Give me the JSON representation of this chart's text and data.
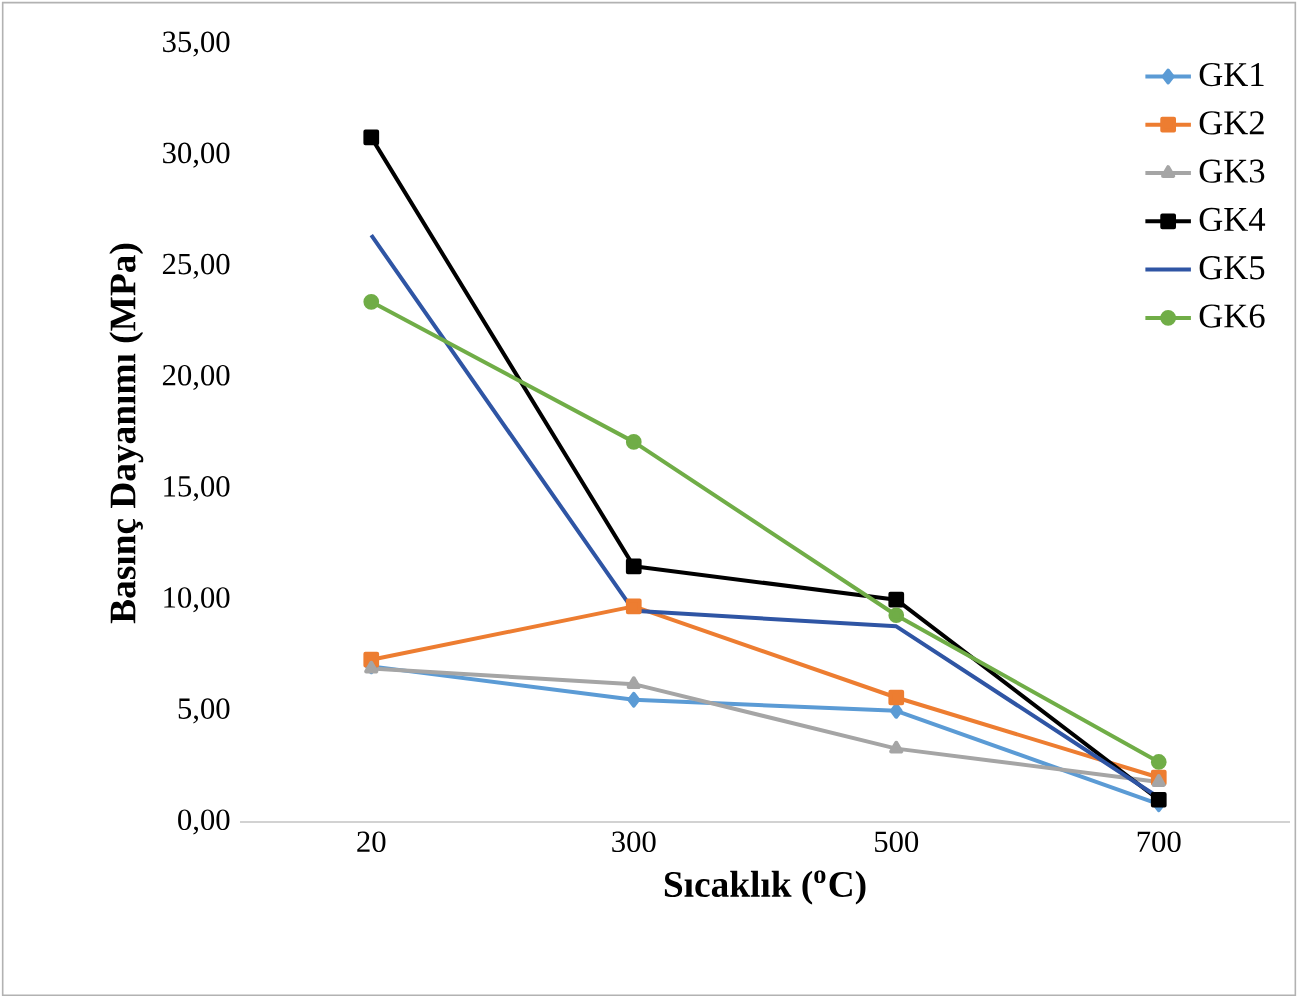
{
  "chart_data": {
    "type": "line",
    "xlabel": "Sıcaklık ($^{o}$C)",
    "ylabel": "Basınç Dayanımı (MPa)",
    "categories": [
      "20",
      "300",
      "500",
      "700"
    ],
    "series": [
      {
        "name": "GK1",
        "color": "#5b9bd5",
        "marker": "diamond",
        "values": [
          7.0,
          5.5,
          5.0,
          0.8
        ]
      },
      {
        "name": "GK2",
        "color": "#ed7d31",
        "marker": "square",
        "values": [
          7.3,
          9.7,
          5.6,
          2.0
        ]
      },
      {
        "name": "GK3",
        "color": "#a5a5a5",
        "marker": "triangle",
        "values": [
          6.9,
          6.2,
          3.3,
          1.8
        ]
      },
      {
        "name": "GK4",
        "color": "#000000",
        "marker": "square",
        "values": [
          30.8,
          11.5,
          10.0,
          1.0
        ]
      },
      {
        "name": "GK5",
        "color": "#2f55a4",
        "marker": "none",
        "values": [
          26.4,
          9.5,
          8.8,
          1.1
        ]
      },
      {
        "name": "GK6",
        "color": "#70ad47",
        "marker": "circle",
        "values": [
          23.4,
          17.1,
          9.3,
          2.7
        ]
      }
    ],
    "ylim": [
      0,
      35
    ],
    "yticks": [
      {
        "value": 0,
        "label": "0,00"
      },
      {
        "value": 5,
        "label": "5,00"
      },
      {
        "value": 10,
        "label": "10,00"
      },
      {
        "value": 15,
        "label": "15,00"
      },
      {
        "value": 20,
        "label": "20,00"
      },
      {
        "value": 25,
        "label": "25,00"
      },
      {
        "value": 30,
        "label": "30,00"
      },
      {
        "value": 35,
        "label": "35,00"
      }
    ],
    "grid": false,
    "legend": "top right"
  }
}
